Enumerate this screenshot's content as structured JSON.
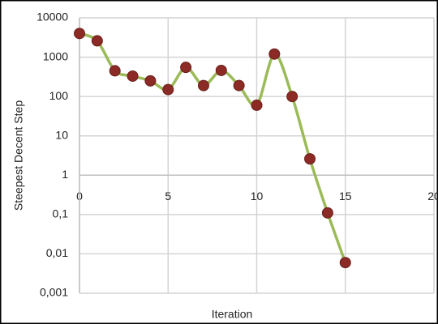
{
  "chart_data": {
    "type": "line",
    "x_label": "Iteration",
    "y_label": "Steepest Decent Step",
    "x": [
      0,
      1,
      2,
      3,
      4,
      5,
      6,
      7,
      8,
      9,
      10,
      11,
      12,
      13,
      14,
      15
    ],
    "series": [
      {
        "color": "#9bbb59",
        "marker_color": "#8c2b25",
        "values": [
          4000,
          2600,
          450,
          330,
          250,
          150,
          550,
          190,
          460,
          190,
          60,
          1200,
          100,
          2.6,
          0.11,
          0.006
        ]
      }
    ],
    "xlim": [
      0,
      20
    ],
    "xticks": [
      0,
      5,
      10,
      15,
      20
    ],
    "ylim": [
      0.001,
      10000
    ],
    "yticks": [
      {
        "value": 0.001,
        "label": "0,001"
      },
      {
        "value": 0.01,
        "label": "0,01"
      },
      {
        "value": 0.1,
        "label": "0,1"
      },
      1,
      10,
      100,
      1000,
      10000
    ],
    "y_log": true,
    "x_axis_crosses": 1,
    "grid": true
  }
}
